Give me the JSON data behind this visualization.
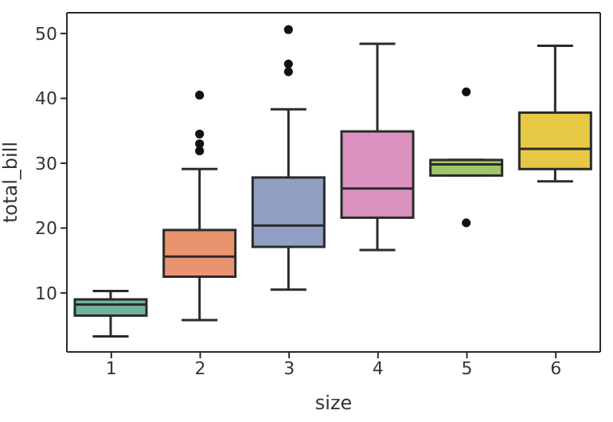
{
  "chart_data": {
    "type": "box",
    "xlabel": "size",
    "ylabel": "total_bill",
    "categories": [
      "1",
      "2",
      "3",
      "4",
      "5",
      "6"
    ],
    "colors": [
      "#6fb399",
      "#e8956f",
      "#919fc2",
      "#db92c0",
      "#9fc665",
      "#e6c845"
    ],
    "boxes": [
      {
        "low": 3.3,
        "q1": 6.5,
        "median": 8.2,
        "q3": 9.0,
        "high": 10.3
      },
      {
        "low": 5.8,
        "q1": 12.5,
        "median": 15.6,
        "q3": 19.7,
        "high": 29.1,
        "outliers": [
          31.9,
          33.0,
          34.5,
          40.5
        ]
      },
      {
        "low": 10.5,
        "q1": 17.1,
        "median": 20.4,
        "q3": 27.8,
        "high": 38.3,
        "outliers": [
          44.1,
          45.3,
          50.6
        ]
      },
      {
        "low": 16.6,
        "q1": 21.6,
        "median": 26.1,
        "q3": 34.9,
        "high": 48.4
      },
      {
        "low": 28.1,
        "q1": 28.1,
        "median": 29.8,
        "q3": 30.5,
        "high": 30.5,
        "outliers": [
          20.8,
          41.0
        ]
      },
      {
        "low": 27.2,
        "q1": 29.1,
        "median": 32.2,
        "q3": 37.8,
        "high": 48.1
      }
    ],
    "ylim": [
      0.9,
      53.2
    ],
    "yticks": [
      10,
      20,
      30,
      40,
      50
    ],
    "grid": false,
    "legend": false
  }
}
